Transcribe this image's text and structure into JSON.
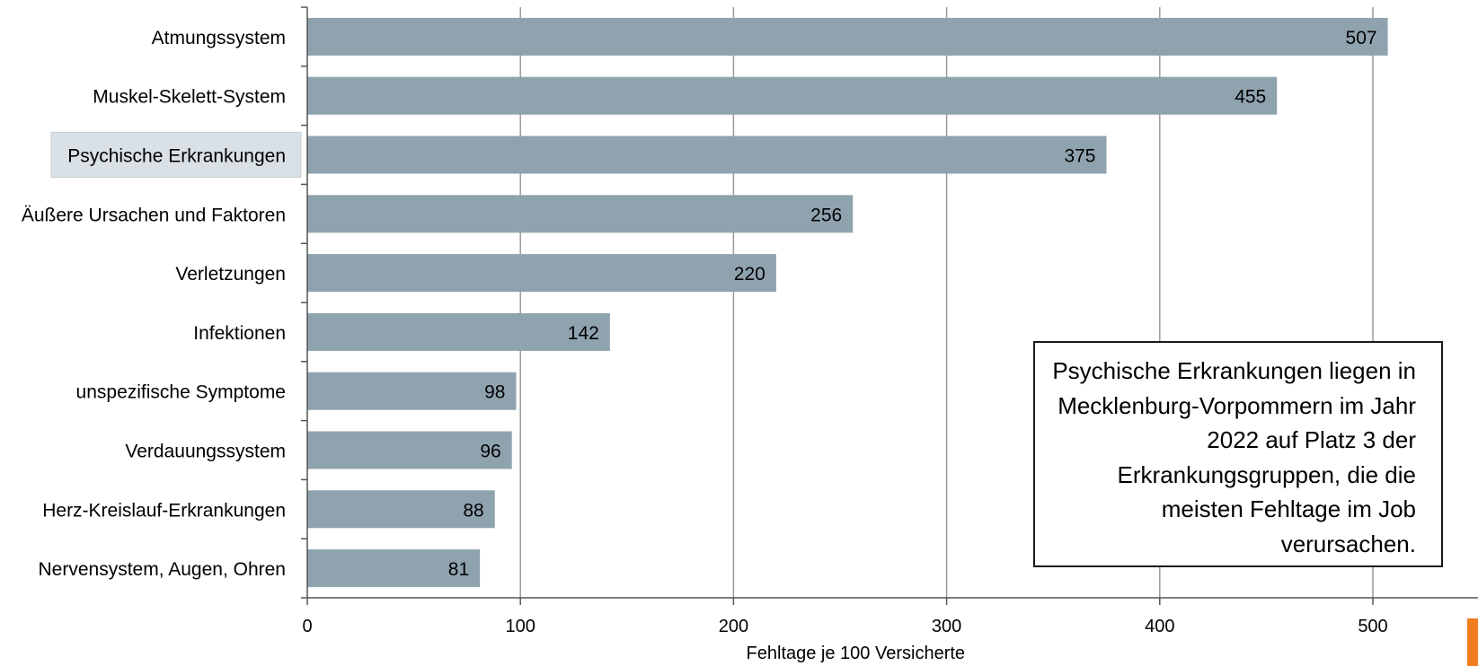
{
  "chart_data": {
    "type": "bar",
    "orientation": "horizontal",
    "categories": [
      "Atmungssystem",
      "Muskel-Skelett-System",
      "Psychische Erkrankungen",
      "Äußere Ursachen und Faktoren",
      "Verletzungen",
      "Infektionen",
      "unspezifische Symptome",
      "Verdauungssystem",
      "Herz-Kreislauf-Erkrankungen",
      "Nervensystem, Augen, Ohren"
    ],
    "values": [
      507,
      455,
      375,
      256,
      220,
      142,
      98,
      96,
      88,
      81
    ],
    "highlighted_category": "Psychische Erkrankungen",
    "xlabel": "Fehltage je 100 Versicherte",
    "xlim": [
      0,
      550
    ],
    "xticks": [
      0,
      100,
      200,
      300,
      400,
      500
    ],
    "grid": "vertical",
    "bar_color": "#8fa3af",
    "highlight_box_color": "#d9e1e6"
  },
  "annotation": {
    "text": "Psychische Erkrankungen liegen in Mecklenburg-Vorpommern im Jahr 2022 auf Platz 3 der Erkrankungsgruppen, die die meisten Fehltage im Job verursachen."
  },
  "accent_color": "#f07d1e"
}
